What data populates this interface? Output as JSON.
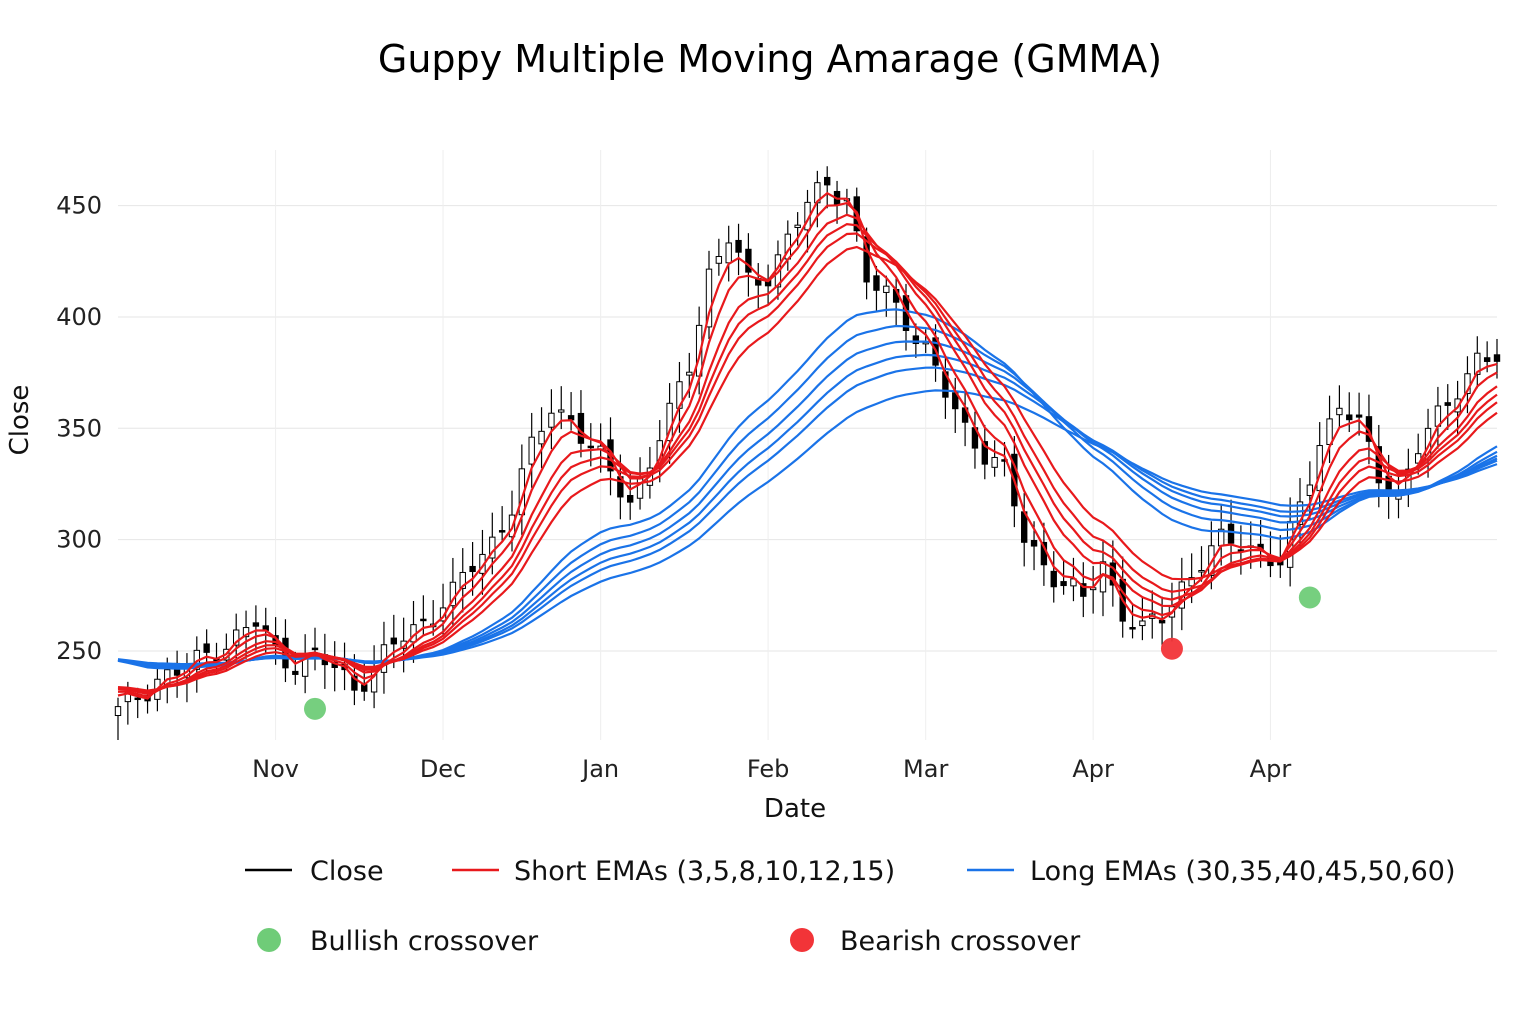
{
  "chart_data": {
    "type": "line",
    "title": "Guppy Multiple Moving Amarage (GMMA)",
    "xlabel": "Date",
    "ylabel": "Close",
    "ylim": [
      210,
      475
    ],
    "yticks": [
      250,
      300,
      350,
      400,
      450
    ],
    "xlim": [
      0,
      140
    ],
    "xticks": [
      {
        "x": 16,
        "label": "Nov"
      },
      {
        "x": 33,
        "label": "Dec"
      },
      {
        "x": 49,
        "label": "Jan"
      },
      {
        "x": 66,
        "label": "Feb"
      },
      {
        "x": 82,
        "label": "Mar"
      },
      {
        "x": 99,
        "label": "Apr"
      },
      {
        "x": 117,
        "label": "Apr"
      }
    ],
    "grid": true,
    "legend": {
      "position": "bottom",
      "close": "Close",
      "short": "Short EMAs (3,5,8,10,12,15)",
      "long": "Long EMAs (30,35,40,45,50,60)",
      "bullish": "Bullish crossover",
      "bearish": "Bearish crossover"
    },
    "colors": {
      "close": "#000000",
      "short": "#e8191c",
      "long": "#1a73e8",
      "bullish": "#6fcc78",
      "bearish": "#f23438"
    },
    "close_anchors": [
      [
        0,
        222
      ],
      [
        2,
        230
      ],
      [
        4,
        238
      ],
      [
        6,
        240
      ],
      [
        8,
        245
      ],
      [
        10,
        252
      ],
      [
        12,
        256
      ],
      [
        14,
        262
      ],
      [
        16,
        250
      ],
      [
        18,
        245
      ],
      [
        20,
        247
      ],
      [
        22,
        242
      ],
      [
        24,
        235
      ],
      [
        26,
        242
      ],
      [
        28,
        252
      ],
      [
        30,
        260
      ],
      [
        32,
        268
      ],
      [
        34,
        275
      ],
      [
        36,
        288
      ],
      [
        38,
        300
      ],
      [
        40,
        315
      ],
      [
        42,
        340
      ],
      [
        44,
        360
      ],
      [
        46,
        355
      ],
      [
        48,
        340
      ],
      [
        50,
        330
      ],
      [
        52,
        318
      ],
      [
        54,
        335
      ],
      [
        56,
        355
      ],
      [
        58,
        380
      ],
      [
        60,
        420
      ],
      [
        62,
        435
      ],
      [
        64,
        415
      ],
      [
        66,
        420
      ],
      [
        68,
        435
      ],
      [
        70,
        450
      ],
      [
        72,
        460
      ],
      [
        74,
        455
      ],
      [
        76,
        415
      ],
      [
        78,
        410
      ],
      [
        80,
        400
      ],
      [
        82,
        385
      ],
      [
        84,
        365
      ],
      [
        86,
        350
      ],
      [
        88,
        340
      ],
      [
        90,
        330
      ],
      [
        92,
        300
      ],
      [
        94,
        290
      ],
      [
        96,
        280
      ],
      [
        98,
        272
      ],
      [
        100,
        290
      ],
      [
        102,
        268
      ],
      [
        104,
        258
      ],
      [
        106,
        265
      ],
      [
        108,
        280
      ],
      [
        110,
        290
      ],
      [
        112,
        298
      ],
      [
        114,
        300
      ],
      [
        116,
        295
      ],
      [
        118,
        288
      ],
      [
        120,
        315
      ],
      [
        122,
        345
      ],
      [
        124,
        360
      ],
      [
        126,
        350
      ],
      [
        128,
        330
      ],
      [
        130,
        320
      ],
      [
        132,
        340
      ],
      [
        134,
        355
      ],
      [
        136,
        370
      ],
      [
        138,
        380
      ],
      [
        140,
        380
      ]
    ],
    "series": [
      {
        "name": "EMA 3",
        "group": "short",
        "period": 3
      },
      {
        "name": "EMA 5",
        "group": "short",
        "period": 5
      },
      {
        "name": "EMA 8",
        "group": "short",
        "period": 8
      },
      {
        "name": "EMA 10",
        "group": "short",
        "period": 10
      },
      {
        "name": "EMA 12",
        "group": "short",
        "period": 12
      },
      {
        "name": "EMA 15",
        "group": "short",
        "period": 15
      },
      {
        "name": "EMA 30",
        "group": "long",
        "period": 30
      },
      {
        "name": "EMA 35",
        "group": "long",
        "period": 35
      },
      {
        "name": "EMA 40",
        "group": "long",
        "period": 40
      },
      {
        "name": "EMA 45",
        "group": "long",
        "period": 45
      },
      {
        "name": "EMA 50",
        "group": "long",
        "period": 50
      },
      {
        "name": "EMA 60",
        "group": "long",
        "period": 60
      }
    ],
    "markers": [
      {
        "type": "bullish",
        "x": 20,
        "y": 224
      },
      {
        "type": "bearish",
        "x": 107,
        "y": 251
      },
      {
        "type": "bullish",
        "x": 121,
        "y": 274
      }
    ]
  }
}
